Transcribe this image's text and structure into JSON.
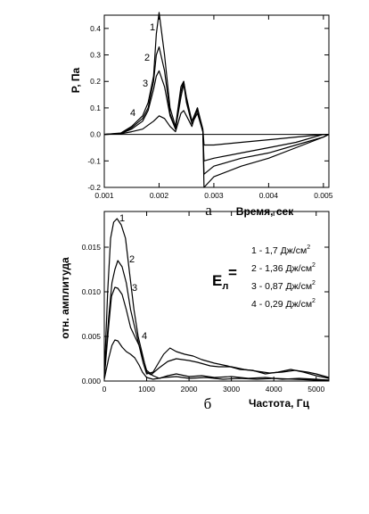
{
  "chart_data": [
    {
      "type": "line",
      "panel_label": "а",
      "xlabel": "Время, сек",
      "ylabel": "P, Па",
      "xlim": [
        0.001,
        0.0051
      ],
      "ylim": [
        -0.2,
        0.45
      ],
      "x_ticks": [
        "0.001",
        "0.002",
        "0.003",
        "0.004",
        "0.005"
      ],
      "y_ticks": [
        "0.4",
        "0.3",
        "0.2",
        "0.1",
        "0.0",
        "-0.1",
        "-0.2"
      ],
      "zero_line": true,
      "grid": false,
      "series": [
        {
          "name": "1",
          "points": [
            [
              0.001,
              0
            ],
            [
              0.0013,
              0.005
            ],
            [
              0.0015,
              0.03
            ],
            [
              0.0017,
              0.07
            ],
            [
              0.0018,
              0.12
            ],
            [
              0.0019,
              0.22
            ],
            [
              0.00195,
              0.38
            ],
            [
              0.002,
              0.46
            ],
            [
              0.0021,
              0.3
            ],
            [
              0.0022,
              0.1
            ],
            [
              0.0023,
              0.03
            ],
            [
              0.0024,
              0.18
            ],
            [
              0.00245,
              0.2
            ],
            [
              0.0025,
              0.14
            ],
            [
              0.0026,
              0.05
            ],
            [
              0.0027,
              0.1
            ],
            [
              0.0028,
              0.01
            ],
            [
              0.00282,
              -0.2
            ],
            [
              0.003,
              -0.16
            ],
            [
              0.0035,
              -0.12
            ],
            [
              0.004,
              -0.09
            ],
            [
              0.0045,
              -0.05
            ],
            [
              0.005,
              -0.01
            ],
            [
              0.0051,
              0
            ]
          ]
        },
        {
          "name": "2",
          "points": [
            [
              0.001,
              0
            ],
            [
              0.0013,
              0.004
            ],
            [
              0.0015,
              0.025
            ],
            [
              0.0017,
              0.06
            ],
            [
              0.0018,
              0.1
            ],
            [
              0.0019,
              0.2
            ],
            [
              0.00195,
              0.3
            ],
            [
              0.002,
              0.33
            ],
            [
              0.0021,
              0.24
            ],
            [
              0.0022,
              0.08
            ],
            [
              0.0023,
              0.02
            ],
            [
              0.0024,
              0.16
            ],
            [
              0.00245,
              0.2
            ],
            [
              0.0025,
              0.13
            ],
            [
              0.0026,
              0.05
            ],
            [
              0.0027,
              0.09
            ],
            [
              0.0028,
              0.01
            ],
            [
              0.00282,
              -0.15
            ],
            [
              0.003,
              -0.12
            ],
            [
              0.0035,
              -0.09
            ],
            [
              0.004,
              -0.07
            ],
            [
              0.0045,
              -0.04
            ],
            [
              0.005,
              -0.01
            ],
            [
              0.0051,
              0
            ]
          ]
        },
        {
          "name": "3",
          "points": [
            [
              0.001,
              0
            ],
            [
              0.0013,
              0.003
            ],
            [
              0.0015,
              0.02
            ],
            [
              0.0017,
              0.05
            ],
            [
              0.0018,
              0.09
            ],
            [
              0.0019,
              0.17
            ],
            [
              0.00195,
              0.22
            ],
            [
              0.002,
              0.24
            ],
            [
              0.0021,
              0.18
            ],
            [
              0.0022,
              0.07
            ],
            [
              0.0023,
              0.02
            ],
            [
              0.0024,
              0.14
            ],
            [
              0.00245,
              0.19
            ],
            [
              0.0025,
              0.12
            ],
            [
              0.0026,
              0.04
            ],
            [
              0.0027,
              0.08
            ],
            [
              0.0028,
              0.01
            ],
            [
              0.00282,
              -0.1
            ],
            [
              0.003,
              -0.09
            ],
            [
              0.0035,
              -0.07
            ],
            [
              0.004,
              -0.05
            ],
            [
              0.0045,
              -0.03
            ],
            [
              0.005,
              0
            ],
            [
              0.0051,
              0
            ]
          ]
        },
        {
          "name": "4",
          "points": [
            [
              0.001,
              0
            ],
            [
              0.0013,
              0.002
            ],
            [
              0.0015,
              0.01
            ],
            [
              0.0017,
              0.02
            ],
            [
              0.0018,
              0.035
            ],
            [
              0.0019,
              0.05
            ],
            [
              0.002,
              0.07
            ],
            [
              0.0021,
              0.06
            ],
            [
              0.0022,
              0.03
            ],
            [
              0.0023,
              0.01
            ],
            [
              0.0024,
              0.08
            ],
            [
              0.00245,
              0.09
            ],
            [
              0.0025,
              0.07
            ],
            [
              0.0026,
              0.03
            ],
            [
              0.0027,
              0.1
            ],
            [
              0.0028,
              0.02
            ],
            [
              0.00282,
              -0.04
            ],
            [
              0.003,
              -0.04
            ],
            [
              0.0035,
              -0.03
            ],
            [
              0.004,
              -0.02
            ],
            [
              0.0045,
              -0.01
            ],
            [
              0.005,
              0
            ],
            [
              0.0051,
              0
            ]
          ]
        }
      ]
    },
    {
      "type": "line",
      "panel_label": "б",
      "xlabel": "Частота, Гц",
      "ylabel": "отн. амплитуда",
      "xlim": [
        0,
        5300
      ],
      "ylim": [
        0,
        0.019
      ],
      "x_ticks": [
        "0",
        "1000",
        "2000",
        "3000",
        "4000",
        "5000"
      ],
      "y_ticks": [
        "0.015",
        "0.010",
        "0.005",
        "0.000"
      ],
      "grid": false,
      "legend_title": "Е",
      "legend_title_subscript": "л",
      "legend_title_equals": "=",
      "legend": [
        {
          "num": "1",
          "text": "1 - 1,7 Дж/см",
          "sup": "2"
        },
        {
          "num": "2",
          "text": "2 - 1,36 Дж/см",
          "sup": "2"
        },
        {
          "num": "3",
          "text": "3 - 0,87 Дж/см",
          "sup": "2"
        },
        {
          "num": "4",
          "text": "4 - 0,29 Дж/см",
          "sup": "2"
        }
      ],
      "series": [
        {
          "name": "1",
          "points": [
            [
              0,
              0.0005
            ],
            [
              80,
              0.01
            ],
            [
              150,
              0.016
            ],
            [
              220,
              0.0178
            ],
            [
              300,
              0.0182
            ],
            [
              400,
              0.0175
            ],
            [
              500,
              0.016
            ],
            [
              600,
              0.012
            ],
            [
              700,
              0.008
            ],
            [
              800,
              0.005
            ],
            [
              900,
              0.003
            ],
            [
              1000,
              0.001
            ],
            [
              1100,
              0.0007
            ],
            [
              1300,
              0.0015
            ],
            [
              1500,
              0.0022
            ],
            [
              1700,
              0.0025
            ],
            [
              2000,
              0.0023
            ],
            [
              2200,
              0.0021
            ],
            [
              2500,
              0.0017
            ],
            [
              2700,
              0.0016
            ],
            [
              3000,
              0.0016
            ],
            [
              3300,
              0.0013
            ],
            [
              3600,
              0.0011
            ],
            [
              3900,
              0.0009
            ],
            [
              4200,
              0.001
            ],
            [
              4500,
              0.0012
            ],
            [
              4800,
              0.001
            ],
            [
              5000,
              0.0008
            ],
            [
              5300,
              0.0004
            ]
          ]
        },
        {
          "name": "2",
          "points": [
            [
              0,
              0.0004
            ],
            [
              100,
              0.007
            ],
            [
              180,
              0.011
            ],
            [
              250,
              0.0125
            ],
            [
              320,
              0.0135
            ],
            [
              420,
              0.0128
            ],
            [
              520,
              0.011
            ],
            [
              620,
              0.008
            ],
            [
              720,
              0.006
            ],
            [
              820,
              0.004
            ],
            [
              920,
              0.002
            ],
            [
              1000,
              0.0008
            ],
            [
              1150,
              0.001
            ],
            [
              1400,
              0.003
            ],
            [
              1550,
              0.0037
            ],
            [
              1700,
              0.0033
            ],
            [
              1900,
              0.003
            ],
            [
              2100,
              0.0028
            ],
            [
              2300,
              0.0024
            ],
            [
              2600,
              0.002
            ],
            [
              2900,
              0.0017
            ],
            [
              3200,
              0.0013
            ],
            [
              3500,
              0.0012
            ],
            [
              3800,
              0.0008
            ],
            [
              4100,
              0.001
            ],
            [
              4400,
              0.0013
            ],
            [
              4700,
              0.001
            ],
            [
              5000,
              0.0006
            ],
            [
              5300,
              0.0003
            ]
          ]
        },
        {
          "name": "3",
          "points": [
            [
              0,
              0.0003
            ],
            [
              100,
              0.006
            ],
            [
              170,
              0.0095
            ],
            [
              250,
              0.0105
            ],
            [
              320,
              0.0104
            ],
            [
              420,
              0.0097
            ],
            [
              520,
              0.008
            ],
            [
              620,
              0.006
            ],
            [
              720,
              0.005
            ],
            [
              820,
              0.004
            ],
            [
              920,
              0.0025
            ],
            [
              1000,
              0.0012
            ],
            [
              1150,
              0.0006
            ],
            [
              1300,
              0.0003
            ],
            [
              1500,
              0.0006
            ],
            [
              1700,
              0.0008
            ],
            [
              2000,
              0.0005
            ],
            [
              2300,
              0.0006
            ],
            [
              2600,
              0.0004
            ],
            [
              3000,
              0.0005
            ],
            [
              3400,
              0.0003
            ],
            [
              3800,
              0.0004
            ],
            [
              4200,
              0.0002
            ],
            [
              4600,
              0.0003
            ],
            [
              5000,
              0.0002
            ],
            [
              5300,
              0.0001
            ]
          ]
        },
        {
          "name": "4",
          "points": [
            [
              0,
              0.0002
            ],
            [
              100,
              0.0025
            ],
            [
              180,
              0.004
            ],
            [
              250,
              0.0046
            ],
            [
              320,
              0.0045
            ],
            [
              420,
              0.0038
            ],
            [
              520,
              0.0033
            ],
            [
              620,
              0.003
            ],
            [
              720,
              0.0026
            ],
            [
              820,
              0.0018
            ],
            [
              900,
              0.001
            ],
            [
              1000,
              0.0004
            ],
            [
              1150,
              0.0002
            ],
            [
              1400,
              0.0004
            ],
            [
              1700,
              0.0005
            ],
            [
              2000,
              0.0003
            ],
            [
              2400,
              0.0004
            ],
            [
              2800,
              0.0002
            ],
            [
              3200,
              0.0003
            ],
            [
              3600,
              0.0002
            ],
            [
              4000,
              0.0003
            ],
            [
              4500,
              0.0002
            ],
            [
              5000,
              0.0001
            ],
            [
              5300,
              0.0001
            ]
          ]
        }
      ]
    }
  ]
}
